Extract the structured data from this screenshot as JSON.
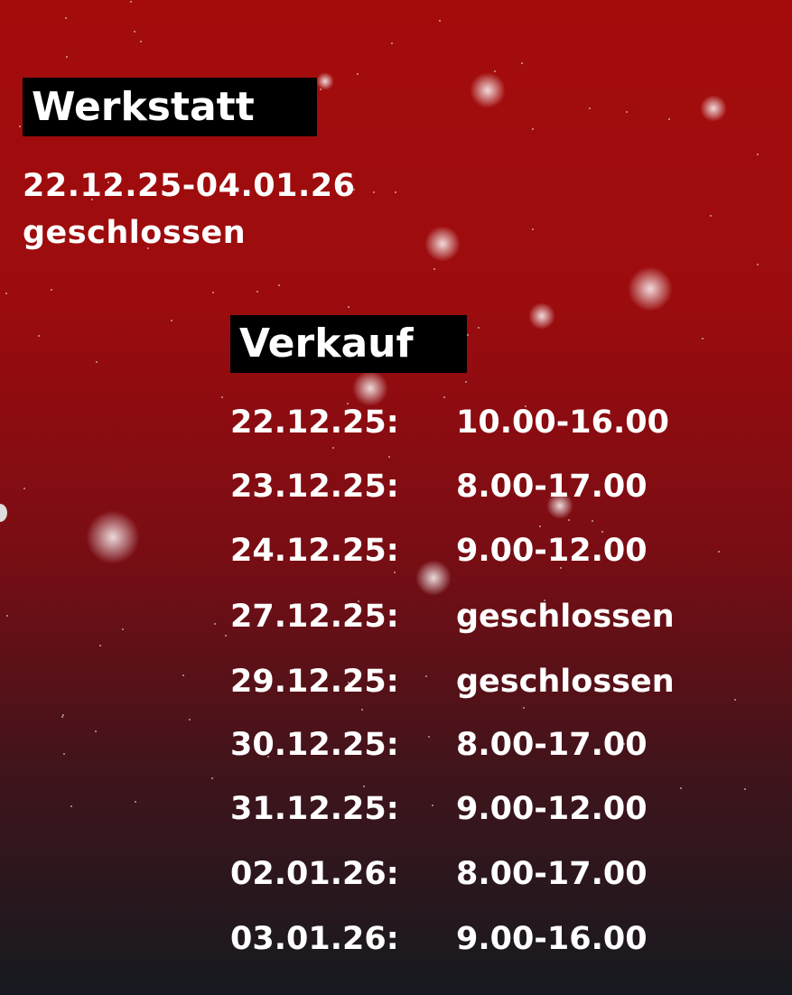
{
  "werkstatt": {
    "title": "Werkstatt",
    "dates": "22.12.25-04.01.26",
    "status": "geschlossen"
  },
  "verkauf": {
    "title": "Verkauf",
    "rows": [
      {
        "date": "22.12.25:",
        "hours": "10.00-16.00"
      },
      {
        "date": "23.12.25:",
        "hours": "8.00-17.00"
      },
      {
        "date": "24.12.25:",
        "hours": "9.00-12.00"
      },
      {
        "date": "27.12.25:",
        "hours": "geschlossen"
      },
      {
        "date": "29.12.25:",
        "hours": "geschlossen"
      },
      {
        "date": "30.12.25:",
        "hours": "8.00-17.00"
      },
      {
        "date": "31.12.25:",
        "hours": "9.00-12.00"
      },
      {
        "date": "02.01.26:",
        "hours": "8.00-17.00"
      },
      {
        "date": "03.01.26:",
        "hours": "9.00-16.00"
      }
    ]
  },
  "colors": {
    "background_top": "#a40c0c",
    "background_bottom": "#161a20",
    "label_box": "#000000",
    "text": "#ffffff"
  }
}
